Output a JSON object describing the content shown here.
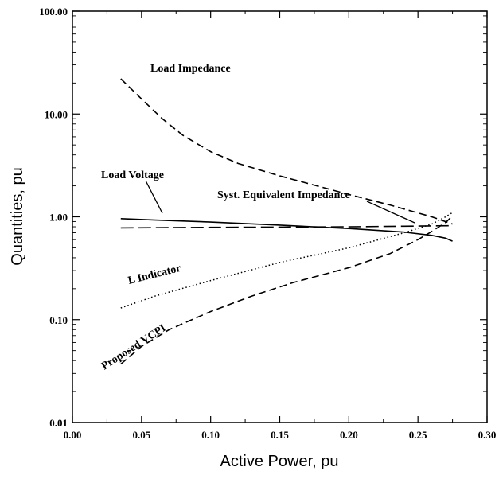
{
  "chart_data": {
    "type": "line",
    "xlabel": "Active Power, pu",
    "ylabel": "Quantities, pu",
    "xlim": [
      0.0,
      0.3
    ],
    "ylim": [
      0.01,
      100.0
    ],
    "yscale": "log",
    "grid": false,
    "x_ticks": [
      "0.00",
      "0.05",
      "0.10",
      "0.15",
      "0.20",
      "0.25",
      "0.30"
    ],
    "y_ticks": [
      "0.01",
      "0.10",
      "1.00",
      "10.00",
      "100.00"
    ],
    "series": [
      {
        "name": "Load Impedance",
        "style": "dashed",
        "x": [
          0.035,
          0.05,
          0.065,
          0.08,
          0.1,
          0.12,
          0.15,
          0.18,
          0.2,
          0.23,
          0.26,
          0.275
        ],
        "y": [
          22,
          14,
          9.0,
          6.2,
          4.3,
          3.3,
          2.5,
          1.95,
          1.65,
          1.3,
          1.0,
          0.85
        ]
      },
      {
        "name": "Load Voltage",
        "style": "solid",
        "x": [
          0.035,
          0.06,
          0.1,
          0.15,
          0.2,
          0.24,
          0.26,
          0.27,
          0.275
        ],
        "y": [
          0.96,
          0.93,
          0.89,
          0.83,
          0.77,
          0.71,
          0.66,
          0.62,
          0.58
        ]
      },
      {
        "name": "Syst. Equivalent Impedance",
        "style": "long-dashed",
        "x": [
          0.035,
          0.1,
          0.2,
          0.275
        ],
        "y": [
          0.78,
          0.79,
          0.8,
          0.82
        ]
      },
      {
        "name": "L Indicator",
        "style": "dotted",
        "x": [
          0.035,
          0.06,
          0.1,
          0.15,
          0.2,
          0.24,
          0.26,
          0.27,
          0.275
        ],
        "y": [
          0.13,
          0.17,
          0.24,
          0.36,
          0.5,
          0.7,
          0.85,
          1.0,
          1.1
        ]
      },
      {
        "name": "Proposed VCPI",
        "style": "dashed",
        "x": [
          0.035,
          0.05,
          0.07,
          0.1,
          0.13,
          0.16,
          0.2,
          0.23,
          0.25,
          0.26,
          0.27,
          0.275
        ],
        "y": [
          0.037,
          0.055,
          0.08,
          0.12,
          0.17,
          0.23,
          0.32,
          0.44,
          0.6,
          0.72,
          0.88,
          1.02
        ]
      }
    ],
    "annotations": [
      "Load Impedance",
      "Load Voltage",
      "Syst. Equivalent Impedance",
      "L Indicator",
      "Proposed VCPI"
    ]
  }
}
